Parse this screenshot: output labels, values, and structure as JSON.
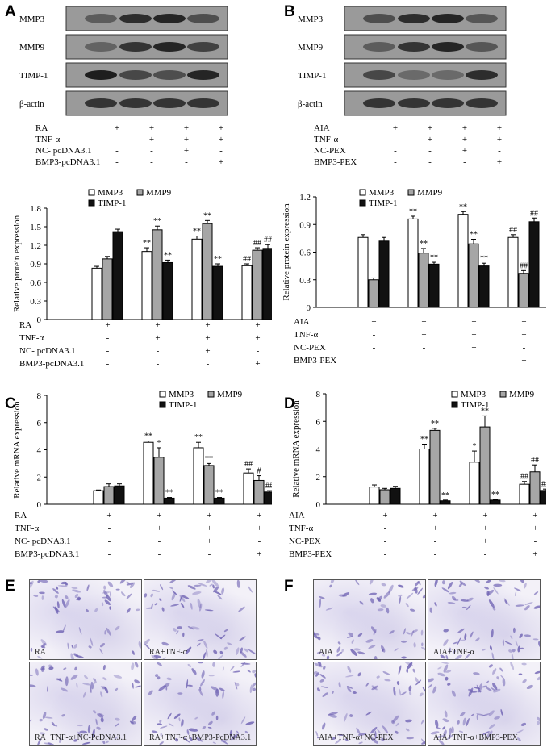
{
  "panel_letters": [
    "A",
    "B",
    "C",
    "D",
    "E",
    "F"
  ],
  "colors": {
    "white_bar": "#ffffff",
    "gray_bar": "#a6a6a6",
    "black_bar": "#111111",
    "stain": "#6f63b3"
  },
  "blots": {
    "A": {
      "proteins": [
        "MMP3",
        "MMP9",
        "TIMP-1",
        "β-actin"
      ],
      "conditions": [
        {
          "label": "RA",
          "signs": [
            "+",
            "+",
            "+",
            "+"
          ]
        },
        {
          "label": "TNF-α",
          "signs": [
            "-",
            "+",
            "+",
            "+"
          ]
        },
        {
          "label": "NC- pcDNA3.1",
          "signs": [
            "-",
            "-",
            "+",
            "-"
          ]
        },
        {
          "label": "BMP3-pcDNA3.1",
          "signs": [
            "-",
            "-",
            "-",
            "+"
          ]
        }
      ]
    },
    "B": {
      "proteins": [
        "MMP3",
        "MMP9",
        "TIMP-1",
        "β-actin"
      ],
      "conditions": [
        {
          "label": "AIA",
          "signs": [
            "+",
            "+",
            "+",
            "+"
          ]
        },
        {
          "label": "TNF-α",
          "signs": [
            "-",
            "+",
            "+",
            "+"
          ]
        },
        {
          "label": "NC-PEX",
          "signs": [
            "-",
            "-",
            "+",
            "-"
          ]
        },
        {
          "label": "BMP3-PEX",
          "signs": [
            "-",
            "-",
            "-",
            "+"
          ]
        }
      ]
    }
  },
  "chart_data": [
    {
      "id": "A",
      "type": "bar",
      "ylabel": "Relative protein expression",
      "ylim": [
        0,
        1.8
      ],
      "yticks": [
        "0",
        "0.3",
        "0.6",
        "0.9",
        "1.2",
        "1.5",
        "1.8"
      ],
      "groups": 4,
      "series": [
        {
          "name": "MMP3",
          "values": [
            0.83,
            1.1,
            1.3,
            0.87
          ],
          "errors": [
            0.03,
            0.06,
            0.05,
            0.03
          ],
          "annotations": [
            "",
            "**",
            "**",
            "##"
          ]
        },
        {
          "name": "MMP9",
          "values": [
            0.98,
            1.45,
            1.55,
            1.12
          ],
          "errors": [
            0.04,
            0.06,
            0.05,
            0.04
          ],
          "annotations": [
            "",
            "**",
            "**",
            "##"
          ]
        },
        {
          "name": "TIMP-1",
          "values": [
            1.42,
            0.92,
            0.86,
            1.15
          ],
          "errors": [
            0.04,
            0.04,
            0.04,
            0.06
          ],
          "annotations": [
            "",
            "**",
            "**",
            "##"
          ]
        }
      ],
      "conditions": [
        {
          "label": "RA",
          "signs": [
            "+",
            "+",
            "+",
            "+"
          ]
        },
        {
          "label": "TNF-α",
          "signs": [
            "-",
            "+",
            "+",
            "+"
          ]
        },
        {
          "label": "NC- pcDNA3.1",
          "signs": [
            "-",
            "-",
            "+",
            "-"
          ]
        },
        {
          "label": "BMP3-pcDNA3.1",
          "signs": [
            "-",
            "-",
            "-",
            "+"
          ]
        }
      ]
    },
    {
      "id": "B",
      "type": "bar",
      "ylabel": "Relative protein expression",
      "ylim": [
        0,
        1.2
      ],
      "yticks": [
        "0",
        "0.3",
        "0.6",
        "0.9",
        "1.2"
      ],
      "groups": 4,
      "series": [
        {
          "name": "MMP3",
          "values": [
            0.76,
            0.96,
            1.01,
            0.76
          ],
          "errors": [
            0.03,
            0.03,
            0.03,
            0.03
          ],
          "annotations": [
            "",
            "**",
            "**",
            "##"
          ]
        },
        {
          "name": "MMP9",
          "values": [
            0.3,
            0.59,
            0.69,
            0.37
          ],
          "errors": [
            0.02,
            0.05,
            0.05,
            0.03
          ],
          "annotations": [
            "",
            "**",
            "**",
            "##"
          ]
        },
        {
          "name": "TIMP-1",
          "values": [
            0.72,
            0.47,
            0.45,
            0.93
          ],
          "errors": [
            0.04,
            0.02,
            0.03,
            0.04
          ],
          "annotations": [
            "",
            "**",
            "**",
            "##"
          ]
        }
      ],
      "conditions": [
        {
          "label": "AIA",
          "signs": [
            "+",
            "+",
            "+",
            "+"
          ]
        },
        {
          "label": "TNF-α",
          "signs": [
            "-",
            "+",
            "+",
            "+"
          ]
        },
        {
          "label": "NC-PEX",
          "signs": [
            "-",
            "-",
            "+",
            "-"
          ]
        },
        {
          "label": "BMP3-PEX",
          "signs": [
            "-",
            "-",
            "-",
            "+"
          ]
        }
      ]
    },
    {
      "id": "C",
      "type": "bar",
      "ylabel": "Relative mRNA expression",
      "ylim": [
        0,
        8
      ],
      "yticks": [
        "0",
        "2",
        "4",
        "6",
        "8"
      ],
      "groups": 4,
      "series": [
        {
          "name": "MMP3",
          "values": [
            1.0,
            4.55,
            4.15,
            2.3
          ],
          "errors": [
            0.05,
            0.1,
            0.4,
            0.3
          ],
          "annotations": [
            "",
            "**",
            "**",
            "##"
          ]
        },
        {
          "name": "MMP9",
          "values": [
            1.3,
            3.45,
            2.85,
            1.75
          ],
          "errors": [
            0.2,
            0.7,
            0.15,
            0.35
          ],
          "annotations": [
            "",
            "*",
            "**",
            "#"
          ]
        },
        {
          "name": "TIMP-1",
          "values": [
            1.35,
            0.45,
            0.45,
            0.9
          ],
          "errors": [
            0.15,
            0.05,
            0.05,
            0.1
          ],
          "annotations": [
            "",
            "**",
            "**",
            "##"
          ]
        }
      ],
      "conditions": [
        {
          "label": "RA",
          "signs": [
            "+",
            "+",
            "+",
            "+"
          ]
        },
        {
          "label": "TNF-α",
          "signs": [
            "-",
            "+",
            "+",
            "+"
          ]
        },
        {
          "label": "NC- pcDNA3.1",
          "signs": [
            "-",
            "-",
            "+",
            "-"
          ]
        },
        {
          "label": "BMP3-pcDNA3.1",
          "signs": [
            "-",
            "-",
            "-",
            "+"
          ]
        }
      ]
    },
    {
      "id": "D",
      "type": "bar",
      "ylabel": "Relative mRNA expression",
      "ylim": [
        0,
        8
      ],
      "yticks": [
        "0",
        "2",
        "4",
        "6",
        "8"
      ],
      "groups": 4,
      "series": [
        {
          "name": "MMP3",
          "values": [
            1.25,
            4.0,
            3.05,
            1.45
          ],
          "errors": [
            0.15,
            0.35,
            0.8,
            0.2
          ],
          "annotations": [
            "",
            "**",
            "*",
            "##"
          ]
        },
        {
          "name": "MMP9",
          "values": [
            1.05,
            5.35,
            5.6,
            2.35
          ],
          "errors": [
            0.1,
            0.15,
            0.8,
            0.5
          ],
          "annotations": [
            "",
            "**",
            "**",
            "##"
          ]
        },
        {
          "name": "TIMP-1",
          "values": [
            1.15,
            0.25,
            0.3,
            1.0
          ],
          "errors": [
            0.15,
            0.05,
            0.05,
            0.1
          ],
          "annotations": [
            "",
            "**",
            "**",
            "##"
          ]
        }
      ],
      "conditions": [
        {
          "label": "AIA",
          "signs": [
            "+",
            "+",
            "+",
            "+"
          ]
        },
        {
          "label": "TNF-α",
          "signs": [
            "-",
            "+",
            "+",
            "+"
          ]
        },
        {
          "label": "NC-PEX",
          "signs": [
            "-",
            "-",
            "+",
            "-"
          ]
        },
        {
          "label": "BMP3-PEX",
          "signs": [
            "-",
            "-",
            "-",
            "+"
          ]
        }
      ]
    }
  ],
  "micrographs": {
    "E": [
      "RA",
      "RA+TNF-α",
      "RA+TNF-α+NC-PcDNA3.1",
      "RA+TNF-α+BMP3-PcDNA3.1"
    ],
    "F": [
      "AIA",
      "AIA+TNF-α",
      "AIA+TNF-α+NC-PEX",
      "AIA+TNF-α+BMP3-PEX"
    ]
  }
}
